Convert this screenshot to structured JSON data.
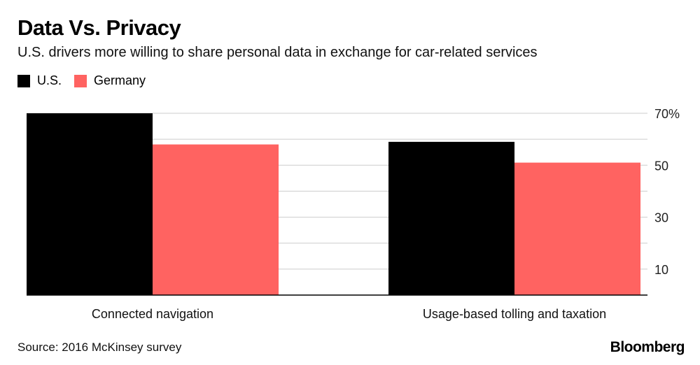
{
  "title": "Data Vs. Privacy",
  "subtitle": "U.S. drivers more willing to share personal data in exchange for car-related services",
  "source": "Source: 2016 McKinsey survey",
  "brand": "Bloomberg",
  "colors": {
    "us": "#000000",
    "germany": "#ff6361",
    "grid": "#cccccc",
    "axis": "#000000"
  },
  "chart_data": {
    "type": "bar",
    "title": "Data Vs. Privacy",
    "subtitle": "U.S. drivers more willing to share personal data in exchange for car-related services",
    "categories": [
      "Connected navigation",
      "Usage-based tolling and taxation"
    ],
    "series": [
      {
        "name": "U.S.",
        "values": [
          70,
          59
        ]
      },
      {
        "name": "Germany",
        "values": [
          58,
          51
        ]
      }
    ],
    "ylim": [
      0,
      70
    ],
    "yticks": [
      10,
      30,
      50,
      70
    ],
    "ytick_labels": [
      "10",
      "30",
      "50",
      "70%"
    ],
    "grid_step": 10,
    "grid": true,
    "legend": "top-left",
    "y_axis_position": "right"
  }
}
